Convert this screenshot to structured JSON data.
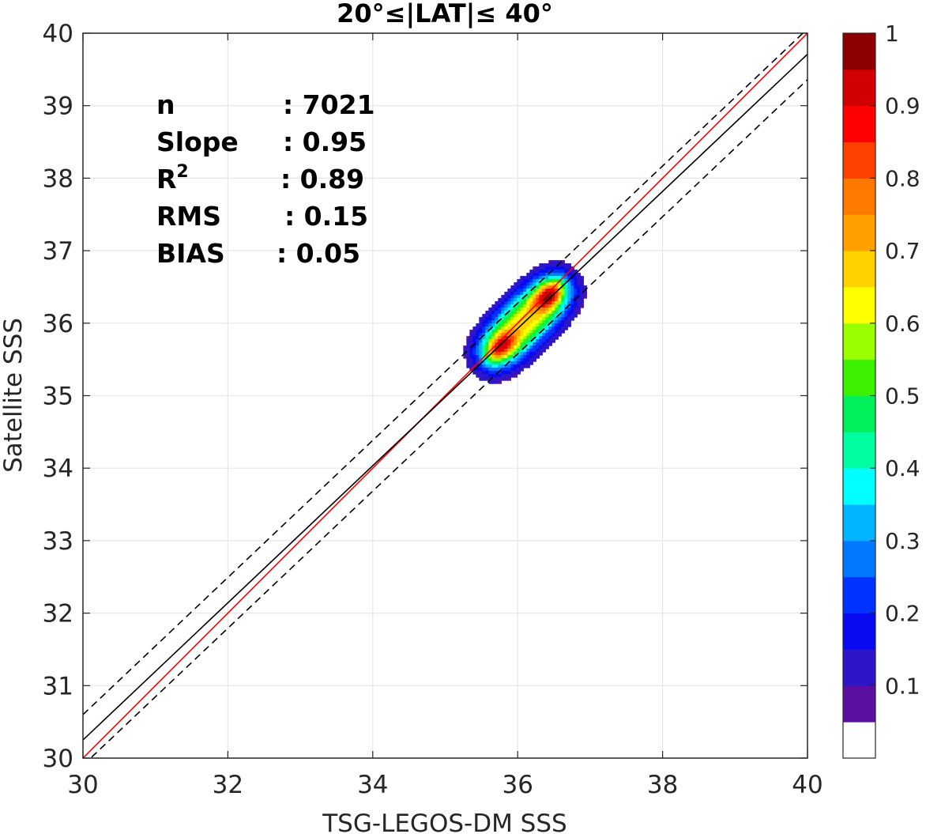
{
  "chart_data": {
    "type": "contour",
    "title": "20°≤|LAT|≤ 40°",
    "xlabel": "TSG-LEGOS-DM SSS",
    "ylabel": "Satellite SSS",
    "xlim": [
      30,
      40
    ],
    "ylim": [
      30,
      40
    ],
    "xticks": [
      30,
      32,
      34,
      36,
      38,
      40
    ],
    "yticks": [
      30,
      31,
      32,
      33,
      34,
      35,
      36,
      37,
      38,
      39,
      40
    ],
    "grid": true,
    "stats": [
      {
        "label": "n",
        "value": ": 7021"
      },
      {
        "label": "Slope",
        "value": ": 0.95"
      },
      {
        "label": "R",
        "sup": "2",
        "value": ": 0.89"
      },
      {
        "label": "RMS",
        "value": ": 0.15"
      },
      {
        "label": "BIAS",
        "value": ": 0.05"
      }
    ],
    "lines": [
      {
        "role": "one-to-one",
        "color": "#ff0000",
        "style": "solid",
        "x": [
          30,
          40
        ],
        "y": [
          30,
          40
        ]
      },
      {
        "role": "regression",
        "color": "#000000",
        "style": "solid",
        "x": [
          30,
          40
        ],
        "y": [
          30.25,
          39.71
        ]
      },
      {
        "role": "regression-upper",
        "color": "#000000",
        "style": "dashed",
        "x": [
          30,
          40
        ],
        "y": [
          30.6,
          40.06
        ]
      },
      {
        "role": "regression-lower",
        "color": "#000000",
        "style": "dashed",
        "x": [
          30,
          40
        ],
        "y": [
          29.9,
          39.36
        ]
      }
    ],
    "density_peaks": [
      {
        "x": 35.75,
        "y": 35.65,
        "level": 0.8
      },
      {
        "x": 36.45,
        "y": 36.4,
        "level": 0.9
      }
    ],
    "colorbar": {
      "ticks": [
        "0.1",
        "0.2",
        "0.3",
        "0.4",
        "0.5",
        "0.6",
        "0.7",
        "0.8",
        "0.9",
        "1"
      ],
      "tick_values": [
        0.1,
        0.2,
        0.3,
        0.4,
        0.5,
        0.6,
        0.7,
        0.8,
        0.9,
        1.0
      ],
      "range": [
        0,
        1
      ],
      "colors": [
        "#ffffff",
        "#5a0fa0",
        "#2d16c8",
        "#0a0af0",
        "#0032ff",
        "#0078ff",
        "#00b4ff",
        "#00ffff",
        "#00ffa0",
        "#00f05a",
        "#3cf000",
        "#9bff00",
        "#ffff00",
        "#ffd200",
        "#ffa000",
        "#ff7800",
        "#ff4100",
        "#ff0000",
        "#d20000",
        "#8c0000"
      ]
    }
  }
}
